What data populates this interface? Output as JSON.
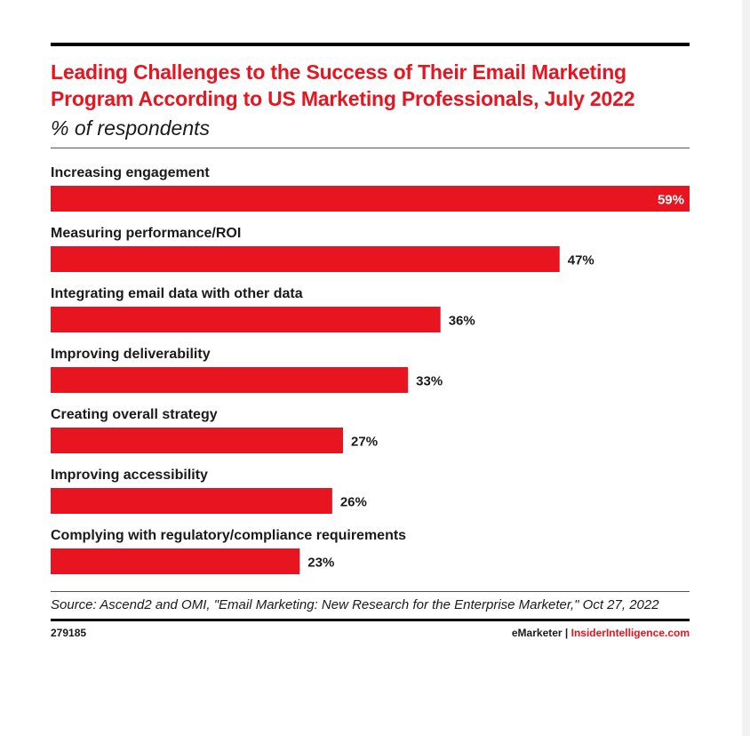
{
  "chart_data": {
    "type": "bar",
    "orientation": "horizontal",
    "title": "Leading Challenges to the Success of Their Email Marketing Program According to US Marketing Professionals, July 2022",
    "subtitle": "% of respondents",
    "categories": [
      "Increasing engagement",
      "Measuring performance/ROI",
      "Integrating email data with other data",
      "Improving deliverability",
      "Creating overall strategy",
      "Improving accessibility",
      "Complying with regulatory/compliance requirements"
    ],
    "values": [
      59,
      47,
      36,
      33,
      27,
      26,
      23
    ],
    "value_labels": [
      "59%",
      "47%",
      "36%",
      "33%",
      "27%",
      "26%",
      "23%"
    ],
    "xlim": [
      0,
      59
    ],
    "unit": "%",
    "bar_color": "#e8141f",
    "grid": false,
    "legend": false
  },
  "source": "Source: Ascend2 and OMI, \"Email Marketing: New Research for the Enterprise Marketer,\" Oct 27, 2022",
  "footer": {
    "chart_id": "279185",
    "brand_left": "eMarketer",
    "separator": "|",
    "brand_right": "InsiderIntelligence.com"
  },
  "colors": {
    "accent": "#e8141f",
    "text": "#1a1a1a",
    "rule": "#000000"
  }
}
